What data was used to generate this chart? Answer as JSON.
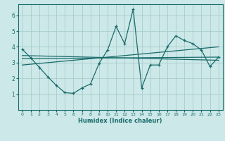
{
  "xlabel": "Humidex (Indice chaleur)",
  "ylabel": "",
  "background_color": "#cce8e8",
  "grid_color": "#aacccc",
  "line_color": "#1a6b6b",
  "xlim": [
    -0.5,
    23.5
  ],
  "ylim": [
    0,
    6.7
  ],
  "xticks": [
    0,
    1,
    2,
    3,
    4,
    5,
    6,
    7,
    8,
    9,
    10,
    11,
    12,
    13,
    14,
    15,
    16,
    17,
    18,
    19,
    20,
    21,
    22,
    23
  ],
  "yticks": [
    1,
    2,
    3,
    4,
    5,
    6
  ],
  "main_x": [
    0,
    1,
    2,
    3,
    4,
    5,
    6,
    7,
    8,
    9,
    10,
    11,
    12,
    13,
    14,
    15,
    16,
    17,
    18,
    19,
    20,
    21,
    22,
    23
  ],
  "main_y": [
    3.85,
    3.3,
    2.7,
    2.1,
    1.55,
    1.1,
    1.05,
    1.4,
    1.65,
    2.95,
    3.8,
    5.3,
    4.2,
    6.4,
    1.4,
    2.85,
    2.85,
    4.0,
    4.7,
    4.4,
    4.2,
    3.8,
    2.75,
    3.35
  ],
  "trend1_x": [
    0,
    23
  ],
  "trend1_y": [
    3.25,
    3.35
  ],
  "trend2_x": [
    0,
    23
  ],
  "trend2_y": [
    2.85,
    4.0
  ],
  "trend3_x": [
    0,
    23
  ],
  "trend3_y": [
    3.45,
    3.15
  ]
}
